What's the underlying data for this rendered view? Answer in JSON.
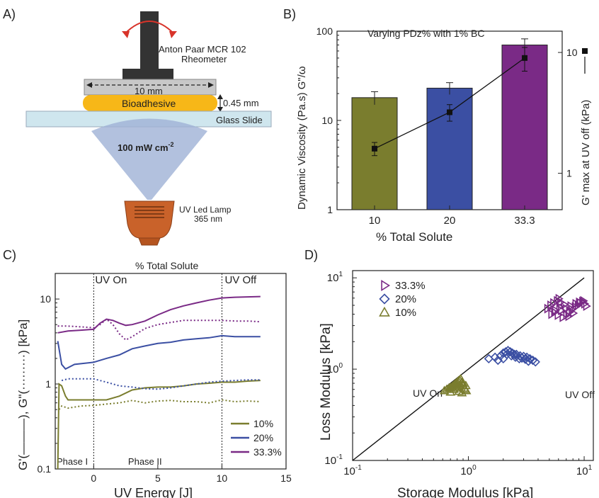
{
  "panel_a": {
    "label": "A)",
    "rheometer_line1": "Anton Paar MCR 102",
    "rheometer_line2": "Rheometer",
    "plate_width": "10 mm",
    "gap": "0.45 mm",
    "bioadhesive": "Bioadhesive",
    "glass_slide": "Glass Slide",
    "intensity": "100 mW cm",
    "intensity_exp": "-2",
    "lamp_line1": "UV Led Lamp",
    "lamp_line2": "365 nm"
  },
  "panel_labels": {
    "b": "B)",
    "c": "C)",
    "d": "D)"
  },
  "colors": {
    "olive": "#7a7d2e",
    "blue": "#3b4fa3",
    "purple": "#7a2a86",
    "bioadhesive": "#f7b718",
    "glass": "#cfe6ee",
    "beam": "#9fb2d6",
    "lamp": "#c9622a"
  },
  "chart_data": [
    {
      "panel": "B",
      "type": "bar",
      "title": "Varying PDz% with 1% BC",
      "xlabel": "% Total Solute",
      "ylabel": "Dynamic Viscosity (Pa.s) G\"/ω",
      "ylabel2": "G' max at UV off (kPa)",
      "yscale": "log",
      "ylim": [
        1,
        100
      ],
      "y2lim": [
        0.5,
        15
      ],
      "yticks": [
        "1",
        "10",
        "100"
      ],
      "y2ticks": [
        "1",
        "10"
      ],
      "categories": [
        "10",
        "20",
        "33.3"
      ],
      "series": [
        {
          "values": [
            18,
            23,
            70
          ],
          "errors": [
            3,
            3.5,
            12
          ],
          "colors": [
            "#7a7d2e",
            "#3b4fa3",
            "#7a2a86"
          ]
        },
        {
          "axis": "right",
          "type": "line",
          "values": [
            1.6,
            3.2,
            9.0
          ],
          "errors": [
            0.2,
            0.5,
            2.0
          ]
        }
      ]
    },
    {
      "panel": "C",
      "type": "line",
      "title": "% Total Solute",
      "xlabel": "UV Energy [J]",
      "ylabel": "G'(———), G\"(·········) [kPa]",
      "yscale": "log",
      "xlim": [
        -3,
        15
      ],
      "ylim": [
        0.1,
        20
      ],
      "xticks": [
        "0",
        "5",
        "10",
        "15"
      ],
      "yticks": [
        "0.1",
        "1",
        "10"
      ],
      "annotations": [
        "UV On",
        "UV Off",
        "Phase I",
        "Phase II"
      ],
      "uv_on_x": 0,
      "uv_off_x": 10,
      "series": [
        {
          "name": "10%",
          "color": "#7a7d2e",
          "gprime": [
            [
              -2.8,
              0.1
            ],
            [
              -2.7,
              1.0
            ],
            [
              -2.5,
              0.95
            ],
            [
              -2.2,
              0.72
            ],
            [
              -2,
              0.65
            ],
            [
              0,
              0.65
            ],
            [
              1,
              0.65
            ],
            [
              2,
              0.72
            ],
            [
              3,
              0.85
            ],
            [
              4,
              0.9
            ],
            [
              5,
              0.92
            ],
            [
              6,
              0.92
            ],
            [
              7,
              0.95
            ],
            [
              8,
              1.0
            ],
            [
              9,
              1.02
            ],
            [
              10,
              1.05
            ],
            [
              11,
              1.05
            ],
            [
              12,
              1.08
            ],
            [
              13,
              1.1
            ]
          ],
          "gdouble": [
            [
              -2.7,
              0.5
            ],
            [
              -2.5,
              0.55
            ],
            [
              -2,
              0.52
            ],
            [
              -1,
              0.55
            ],
            [
              0,
              0.56
            ],
            [
              1,
              0.58
            ],
            [
              2,
              0.6
            ],
            [
              3,
              0.64
            ],
            [
              4,
              0.6
            ],
            [
              5,
              0.63
            ],
            [
              6,
              0.64
            ],
            [
              7,
              0.62
            ],
            [
              8,
              0.62
            ],
            [
              9,
              0.6
            ],
            [
              10,
              0.65
            ],
            [
              11,
              0.62
            ],
            [
              12,
              0.63
            ],
            [
              13,
              0.62
            ]
          ]
        },
        {
          "name": "20%",
          "color": "#3b4fa3",
          "gprime": [
            [
              -2.8,
              3.2
            ],
            [
              -2.5,
              1.7
            ],
            [
              -2.2,
              1.5
            ],
            [
              -1.5,
              1.7
            ],
            [
              0,
              1.8
            ],
            [
              1,
              2.0
            ],
            [
              2,
              2.2
            ],
            [
              3,
              2.6
            ],
            [
              4,
              2.8
            ],
            [
              5,
              3.0
            ],
            [
              6,
              3.1
            ],
            [
              7,
              3.3
            ],
            [
              8,
              3.4
            ],
            [
              9,
              3.5
            ],
            [
              10,
              3.7
            ],
            [
              11,
              3.6
            ],
            [
              12,
              3.6
            ],
            [
              13,
              3.6
            ]
          ],
          "gdouble": [
            [
              -2.5,
              1.1
            ],
            [
              -2,
              1.15
            ],
            [
              -1,
              1.15
            ],
            [
              0,
              1.15
            ],
            [
              1,
              1.05
            ],
            [
              2,
              0.95
            ],
            [
              3,
              0.92
            ],
            [
              4,
              0.88
            ],
            [
              5,
              0.87
            ],
            [
              6,
              0.9
            ],
            [
              7,
              0.95
            ],
            [
              8,
              1.0
            ],
            [
              9,
              1.05
            ],
            [
              10,
              1.08
            ],
            [
              11,
              1.1
            ],
            [
              12,
              1.12
            ],
            [
              13,
              1.12
            ]
          ]
        },
        {
          "name": "33.3%",
          "color": "#7a2a86",
          "gprime": [
            [
              -2.8,
              4.0
            ],
            [
              -2,
              4.2
            ],
            [
              -1,
              4.3
            ],
            [
              0,
              4.4
            ],
            [
              0.5,
              5.2
            ],
            [
              1,
              5.8
            ],
            [
              1.5,
              5.6
            ],
            [
              2,
              5.2
            ],
            [
              2.5,
              4.9
            ],
            [
              3,
              5.0
            ],
            [
              4,
              5.5
            ],
            [
              5,
              6.5
            ],
            [
              6,
              7.5
            ],
            [
              7,
              8.3
            ],
            [
              8,
              9.0
            ],
            [
              9,
              9.7
            ],
            [
              10,
              10.3
            ],
            [
              11,
              10.5
            ],
            [
              12,
              10.6
            ],
            [
              13,
              10.7
            ]
          ],
          "gdouble": [
            [
              -2.8,
              4.8
            ],
            [
              -2,
              4.8
            ],
            [
              -1,
              4.7
            ],
            [
              0,
              4.6
            ],
            [
              0.5,
              5.0
            ],
            [
              1,
              5.8
            ],
            [
              1.5,
              5.0
            ],
            [
              2,
              3.9
            ],
            [
              2.5,
              3.3
            ],
            [
              3,
              3.6
            ],
            [
              4,
              4.5
            ],
            [
              5,
              5.0
            ],
            [
              6,
              5.3
            ],
            [
              7,
              5.6
            ],
            [
              8,
              5.6
            ],
            [
              9,
              5.6
            ],
            [
              10,
              5.6
            ],
            [
              11,
              5.5
            ],
            [
              12,
              5.5
            ],
            [
              13,
              5.4
            ]
          ]
        }
      ]
    },
    {
      "panel": "D",
      "type": "scatter",
      "xlabel": "Storage Modulus [kPa]",
      "ylabel": "Loss Modulus [kPa]",
      "xscale": "log",
      "yscale": "log",
      "xlim": [
        0.1,
        12
      ],
      "ylim": [
        0.1,
        12
      ],
      "xticks": [
        "10",
        "10",
        "10"
      ],
      "xtick_exponents": [
        "-1",
        "0",
        "1"
      ],
      "yticks": [
        "10",
        "10",
        "10"
      ],
      "ytick_exponents": [
        "-1",
        "0",
        "1"
      ],
      "annotations": [
        "UV On",
        "UV Off"
      ],
      "reference_line": "y = x",
      "series": [
        {
          "name": "33.3%",
          "marker": "triangle-right",
          "color": "#7a2a86",
          "x": [
            4.8,
            5.1,
            5.4,
            5.8,
            6.0,
            6.2,
            5.5,
            5.9,
            6.5,
            7.0,
            7.4,
            7.8,
            8.3,
            8.8,
            9.2,
            9.6,
            10.0,
            10.4,
            6.3,
            6.9,
            7.6,
            8.4,
            9.0,
            9.8,
            5.2,
            5.6,
            6.1,
            6.7,
            7.3,
            8.0
          ],
          "y": [
            4.6,
            5.0,
            5.3,
            5.6,
            5.9,
            5.4,
            4.2,
            3.9,
            3.7,
            3.9,
            4.2,
            4.5,
            4.8,
            5.0,
            5.3,
            5.5,
            5.2,
            4.9,
            4.4,
            4.6,
            4.9,
            5.2,
            5.4,
            5.6,
            4.0,
            4.4,
            4.8,
            5.1,
            3.8,
            4.1
          ]
        },
        {
          "name": "20%",
          "marker": "diamond",
          "color": "#3b4fa3",
          "x": [
            1.5,
            1.7,
            1.9,
            2.0,
            2.1,
            2.2,
            2.3,
            2.4,
            2.5,
            2.6,
            2.8,
            3.0,
            3.2,
            3.4,
            3.6,
            3.8,
            2.15,
            2.35,
            2.55,
            2.75,
            1.8,
            2.0,
            2.9,
            3.1,
            3.3
          ],
          "y": [
            1.3,
            1.35,
            1.4,
            1.5,
            1.55,
            1.6,
            1.55,
            1.5,
            1.45,
            1.45,
            1.4,
            1.38,
            1.35,
            1.3,
            1.25,
            1.2,
            1.45,
            1.4,
            1.35,
            1.3,
            1.25,
            1.3,
            1.32,
            1.28,
            1.22
          ]
        },
        {
          "name": "10%",
          "marker": "triangle-up",
          "color": "#7a7d2e",
          "x": [
            0.62,
            0.65,
            0.68,
            0.7,
            0.72,
            0.74,
            0.76,
            0.78,
            0.8,
            0.82,
            0.84,
            0.86,
            0.88,
            0.9,
            0.92,
            0.94,
            0.96,
            0.7,
            0.75,
            0.8,
            0.85,
            0.9,
            0.95,
            0.78,
            0.83,
            0.88
          ],
          "y": [
            0.58,
            0.6,
            0.62,
            0.63,
            0.64,
            0.66,
            0.68,
            0.7,
            0.72,
            0.74,
            0.76,
            0.78,
            0.72,
            0.66,
            0.62,
            0.6,
            0.58,
            0.56,
            0.6,
            0.64,
            0.68,
            0.7,
            0.66,
            0.62,
            0.57,
            0.55
          ]
        }
      ]
    }
  ]
}
